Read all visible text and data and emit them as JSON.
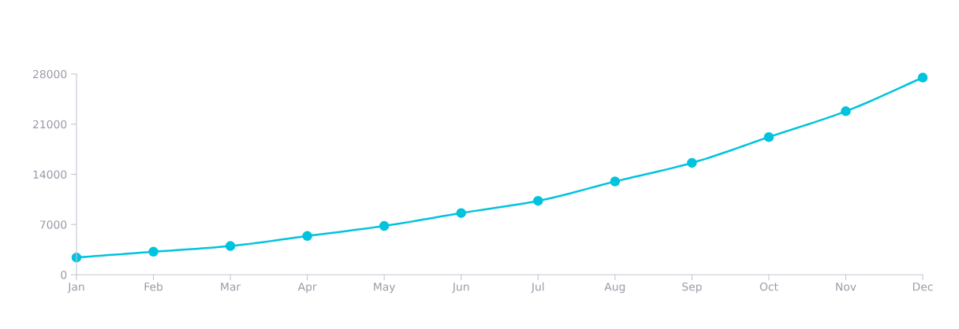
{
  "chart_data": {
    "type": "line",
    "categories": [
      "Jan",
      "Feb",
      "Mar",
      "Apr",
      "May",
      "Jun",
      "Jul",
      "Aug",
      "Sep",
      "Oct",
      "Nov",
      "Dec"
    ],
    "series": [
      {
        "color": "#00c3dd",
        "values": [
          2400,
          3200,
          4000,
          5400,
          6800,
          8600,
          10300,
          13000,
          15600,
          19200,
          22800,
          27500
        ]
      }
    ],
    "ylim": [
      0,
      28000
    ],
    "yticks": [
      0,
      7000,
      14000,
      21000,
      28000
    ],
    "grid": false,
    "marker": "circle",
    "line_style": "solid"
  }
}
